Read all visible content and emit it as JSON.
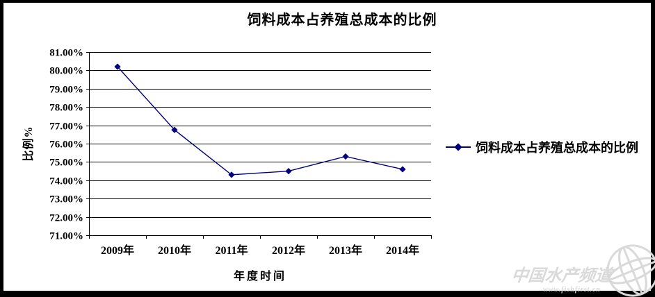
{
  "colors": {
    "frame": "#000000",
    "panel": "#ffffff",
    "series_line": "#000080",
    "grid": "#000000",
    "watermark": "#d9d9d9"
  },
  "chart_data": {
    "type": "line",
    "title": "饲料成本占养殖总成本的比例",
    "xlabel": "年度时间",
    "ylabel": "比例%",
    "categories": [
      "2009年",
      "2010年",
      "2011年",
      "2012年",
      "2013年",
      "2014年"
    ],
    "series": [
      {
        "name": "饲料成本占养殖总成本的比例",
        "values": [
          80.2,
          76.75,
          74.3,
          74.5,
          75.3,
          74.6
        ],
        "color": "#000080",
        "marker": "diamond"
      }
    ],
    "ylim": [
      71,
      81
    ],
    "ytick_step": 1,
    "ytick_labels": [
      "81.00%",
      "80.00%",
      "79.00%",
      "78.00%",
      "77.00%",
      "76.00%",
      "75.00%",
      "74.00%",
      "73.00%",
      "72.00%",
      "71.00%"
    ],
    "grid": true,
    "legend_position": "right"
  },
  "watermark": {
    "name": "中国水产频道",
    "url": "www.fishfirst.cn"
  }
}
